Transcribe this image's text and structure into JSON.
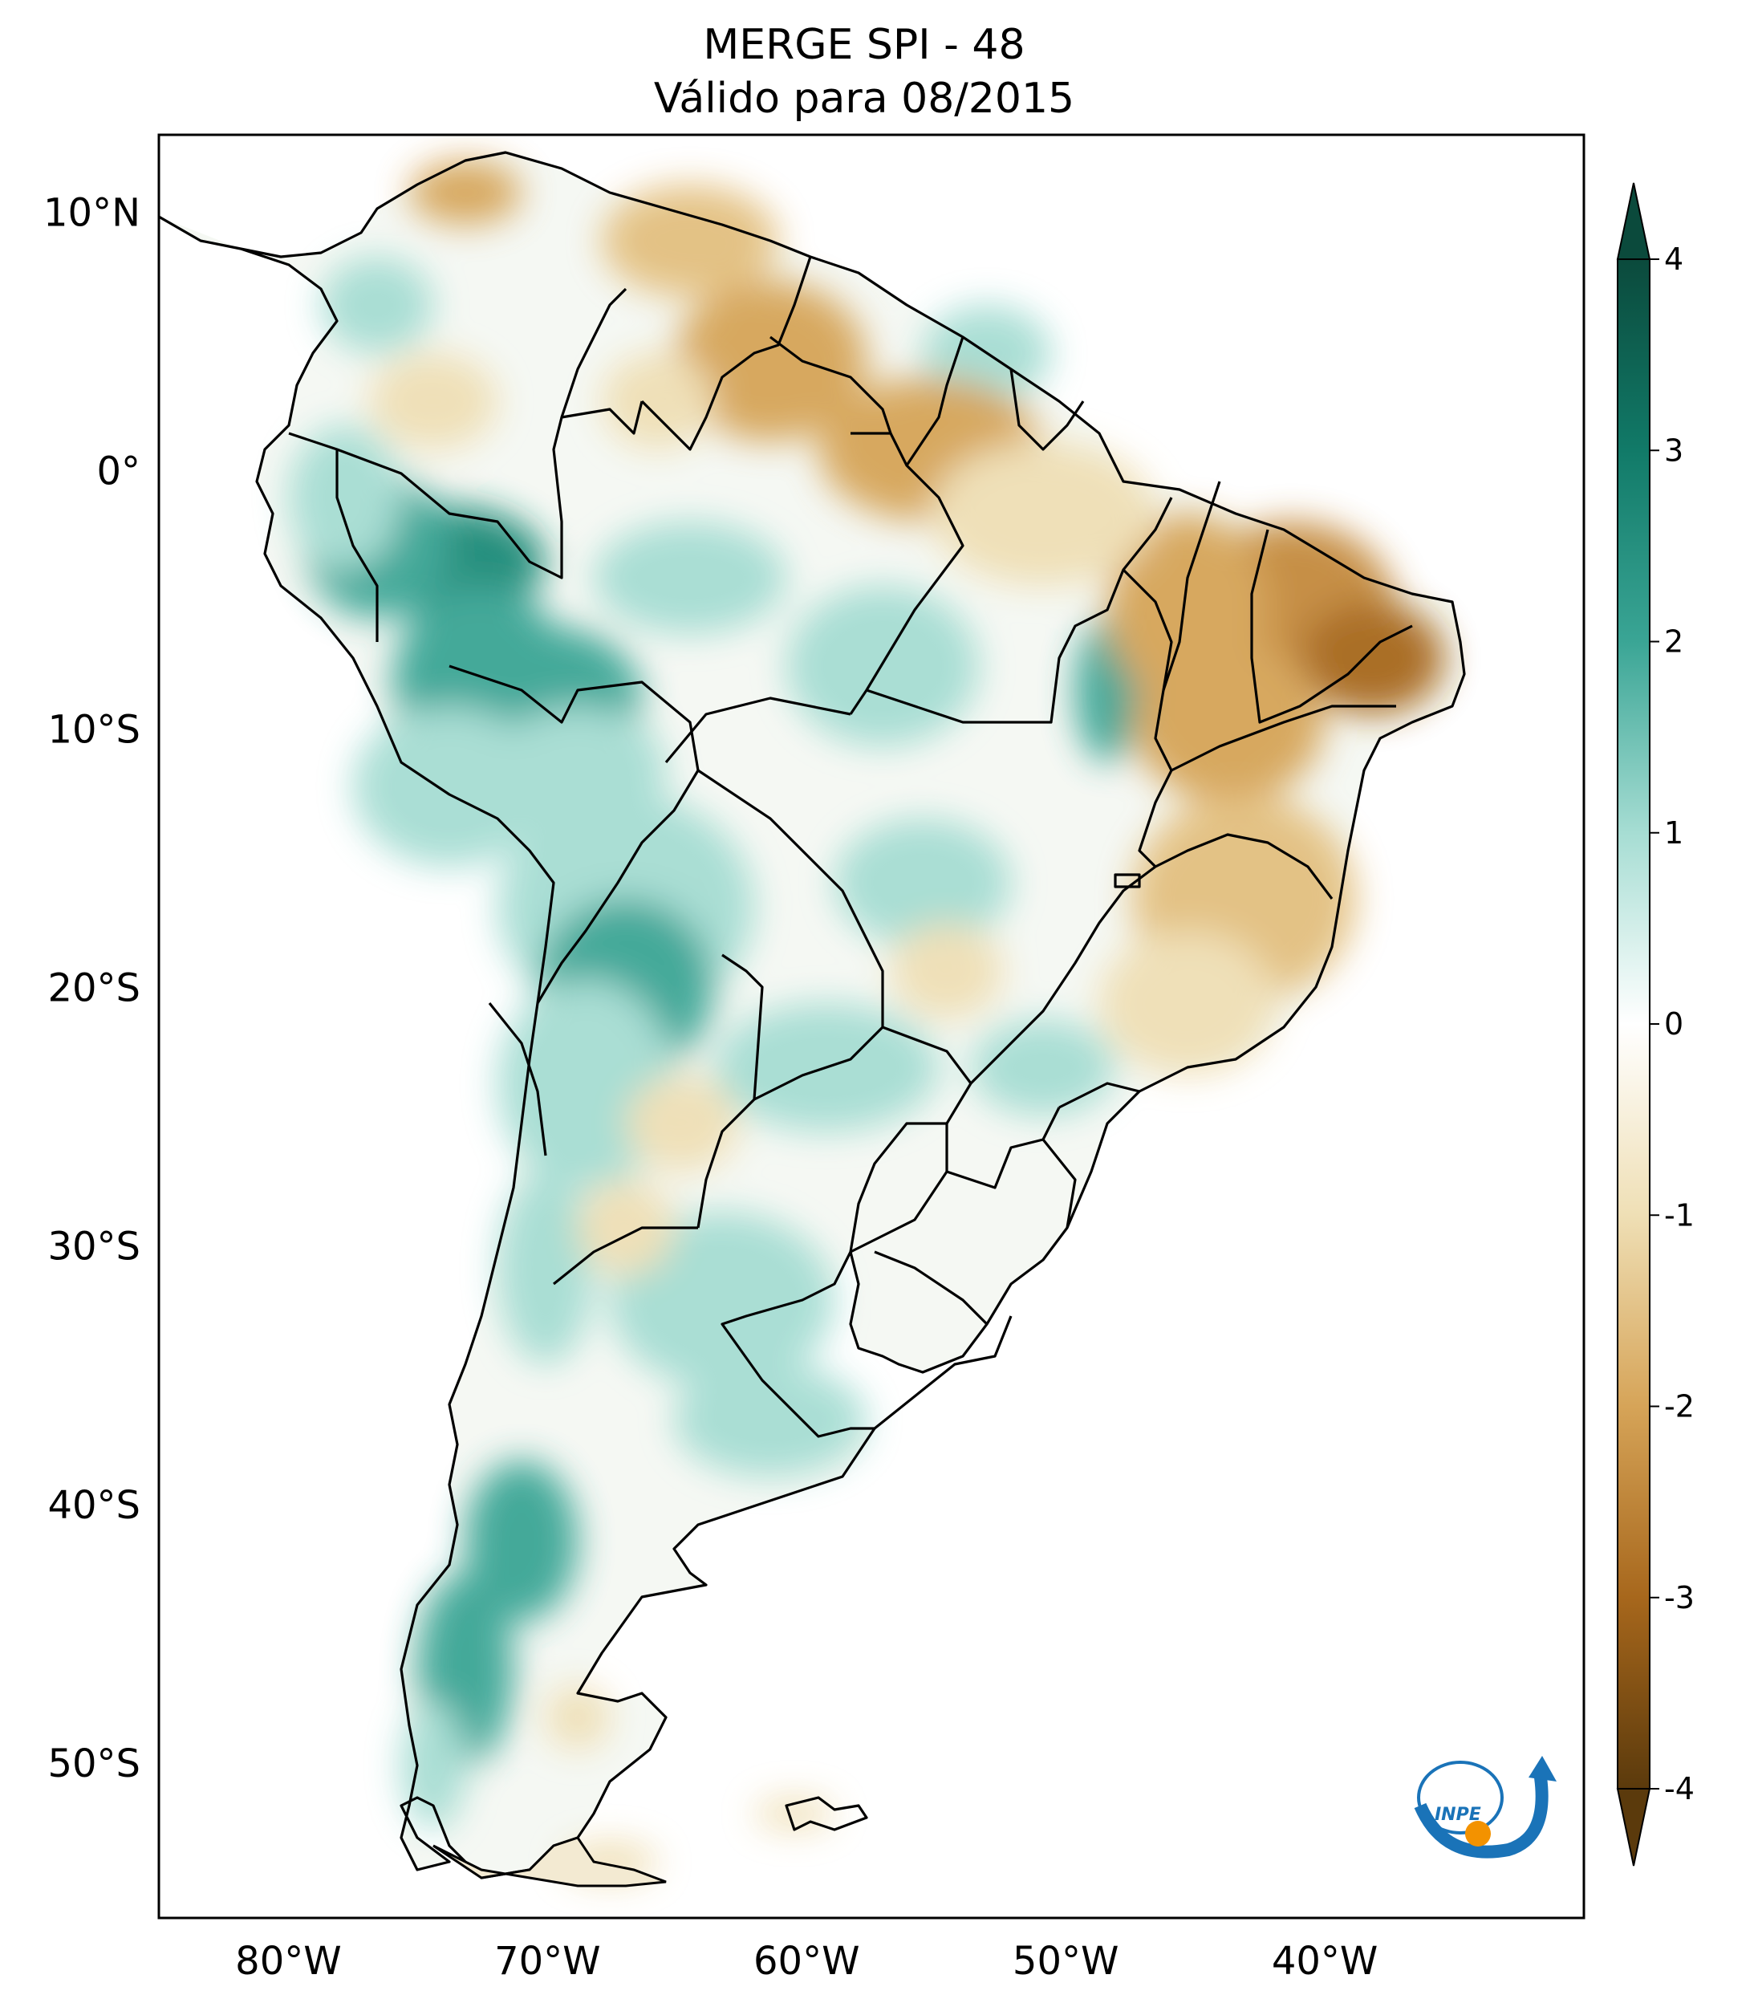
{
  "title": {
    "line1": "MERGE   SPI - 48",
    "line2": "Válido para 08/2015"
  },
  "axes": {
    "lat_labels": [
      {
        "label": "10°N",
        "value": 10
      },
      {
        "label": "0°",
        "value": 0
      },
      {
        "label": "10°S",
        "value": -10
      },
      {
        "label": "20°S",
        "value": -20
      },
      {
        "label": "30°S",
        "value": -30
      },
      {
        "label": "40°S",
        "value": -40
      },
      {
        "label": "50°S",
        "value": -50
      }
    ],
    "lon_labels": [
      {
        "label": "80°W",
        "value": -80
      },
      {
        "label": "70°W",
        "value": -70
      },
      {
        "label": "60°W",
        "value": -60
      },
      {
        "label": "50°W",
        "value": -50
      },
      {
        "label": "40°W",
        "value": -40
      }
    ],
    "lon_range": [
      -85,
      -30
    ],
    "lat_range": [
      -56,
      13
    ]
  },
  "colorbar": {
    "ticks": [
      {
        "label": "4",
        "value": 4
      },
      {
        "label": "3",
        "value": 3
      },
      {
        "label": "2",
        "value": 2
      },
      {
        "label": "1",
        "value": 1
      },
      {
        "label": "0",
        "value": 0
      },
      {
        "label": "-1",
        "value": -1
      },
      {
        "label": "-2",
        "value": -2
      },
      {
        "label": "-3",
        "value": -3
      },
      {
        "label": "-4",
        "value": -4
      }
    ],
    "range": [
      -4,
      4
    ],
    "colors": {
      "pos4": "#0b4a3c",
      "pos3": "#117a68",
      "pos2": "#3aa595",
      "pos1": "#a6ddd3",
      "zero": "#ffffff",
      "neg1": "#efdfb5",
      "neg2": "#d6a458",
      "neg3": "#a7671c",
      "neg4": "#5b3a0c"
    }
  },
  "logo": {
    "text": "INPE",
    "colors": {
      "blue": "#1a73b8",
      "orange": "#f39200"
    }
  }
}
